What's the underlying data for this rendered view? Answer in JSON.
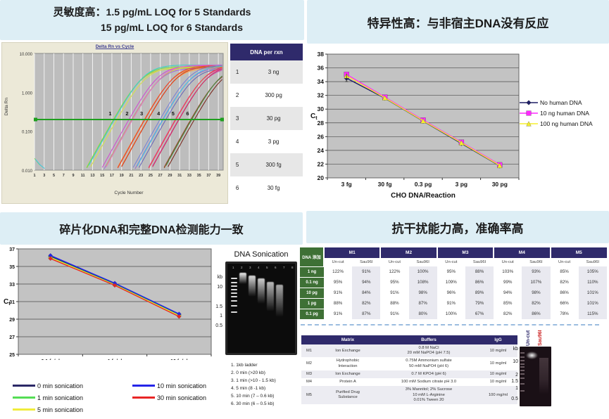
{
  "colors": {
    "navy": "#2f2a6b",
    "green_header": "#3e7035",
    "panel_blue": "#ddeef5",
    "threshold_green": "#1e9e1e"
  },
  "q1": {
    "title_prefix": "灵敏度高：",
    "title_line1": "1.5 pg/mL LOQ for 5 Standards",
    "title_line2": "15 pg/mL LOQ for 6 Standards",
    "dna_table": {
      "header": "DNA per rxn",
      "rows": [
        [
          "1",
          "3 ng"
        ],
        [
          "2",
          "300 pg"
        ],
        [
          "3",
          "30 pg"
        ],
        [
          "4",
          "3 pg"
        ],
        [
          "5",
          "300 fg"
        ],
        [
          "6",
          "30 fg"
        ]
      ]
    }
  },
  "q2": {
    "title": "特异性高：与非宿主DNA没有反应"
  },
  "q3": {
    "title": "碎片化DNA和完整DNA检测能力一致",
    "gel": {
      "title": "DNA Sonication",
      "lane_numbers": [
        "1",
        "2",
        "3",
        "4",
        "5",
        "6",
        "7",
        "8"
      ],
      "kb_labels": [
        "kb",
        "10",
        "1.5",
        "1",
        "0.5"
      ],
      "caption": [
        "1. 1kb ladder",
        "2. 0 min (>20 kb)",
        "3. 1 min (>10 - 1.5 kb)",
        "4. 5 min (8 -1 kb)",
        "5. 10 min (7 – 0.6 kb)",
        "6. 30 min (6 – 0.5 kb)"
      ]
    }
  },
  "q4": {
    "title": "抗干扰能力高，准确率高",
    "spike_table": {
      "corner": "DNA 添加",
      "groups": [
        "M1",
        "M2",
        "M3",
        "M4",
        "M5"
      ],
      "subcols": [
        "Un-cut",
        "Sau96I"
      ],
      "rows": [
        {
          "label": "1 ng",
          "values": [
            "122%",
            "91%",
            "122%",
            "100%",
            "95%",
            "88%",
            "103%",
            "93%",
            "85%",
            "105%"
          ]
        },
        {
          "label": "0.1 ng",
          "values": [
            "95%",
            "94%",
            "95%",
            "108%",
            "109%",
            "86%",
            "99%",
            "107%",
            "82%",
            "110%"
          ]
        },
        {
          "label": "10 pg",
          "values": [
            "91%",
            "84%",
            "91%",
            "98%",
            "96%",
            "89%",
            "94%",
            "98%",
            "86%",
            "101%"
          ]
        },
        {
          "label": "1 pg",
          "values": [
            "88%",
            "82%",
            "88%",
            "87%",
            "91%",
            "79%",
            "85%",
            "82%",
            "66%",
            "101%"
          ]
        },
        {
          "label": "0.1 pg",
          "values": [
            "91%",
            "87%",
            "91%",
            "80%",
            "100%",
            "67%",
            "82%",
            "86%",
            "78%",
            "115%"
          ]
        }
      ]
    },
    "matrix_table": {
      "headers": [
        "",
        "Matrix",
        "Buffers",
        "IgG"
      ],
      "rows": [
        {
          "id": "M1",
          "matrix": "Ion Exchange",
          "buffers": "0.8 M NaCl\n20 mM NaPO4 (pH 7.5)",
          "igg": "10 mg/ml"
        },
        {
          "id": "M2",
          "matrix": "Hydrophobic\nInteraction",
          "buffers": "0.75M Ammonium sulfate\n50 mM NaPO4 (pH 6)",
          "igg": "10 mg/ml"
        },
        {
          "id": "M3",
          "matrix": "Ion Exchange",
          "buffers": "0.7 M KPO4 (pH 6)",
          "igg": "10 mg/ml"
        },
        {
          "id": "M4",
          "matrix": "Protein A",
          "buffers": "100 mM Sodium citrate pH 3.0",
          "igg": "10 mg/ml"
        },
        {
          "id": "M5",
          "matrix": "Purified Drug\nSubstance",
          "buffers": "3% Mannitol; 2% Sucrose\n10 mM L-Arginine\n0.01% Tween 20",
          "igg": "100 mg/ml"
        }
      ]
    },
    "gel": {
      "lane_labels": [
        {
          "text": "Un-cut",
          "color": "#2f2a6b"
        },
        {
          "text": "Sau96I",
          "color": "#cc2222"
        }
      ],
      "kb_labels": [
        "kb",
        "10",
        "2",
        "1.5",
        "1",
        "0.5"
      ]
    }
  },
  "chart_data": [
    {
      "id": "amplification",
      "type": "line",
      "title": "Delta Rn vs Cycle",
      "xlabel": "Cycle Number",
      "ylabel": "Delta Rn",
      "y_scale": "log",
      "ylim": [
        0.01,
        10
      ],
      "ytick_labels": [
        "10.000",
        "1.000",
        "0.100",
        "0.010"
      ],
      "xticks": [
        1,
        3,
        5,
        7,
        9,
        11,
        13,
        15,
        17,
        19,
        21,
        23,
        25,
        27,
        29,
        31,
        33,
        35,
        37,
        39
      ],
      "threshold": 0.2,
      "groups": [
        {
          "label": "1",
          "ct": 17.5,
          "dna_per_rxn": "3 ng",
          "colors": [
            "#b9d034",
            "#73d94f",
            "#3fd0c8",
            "#d7e24a"
          ]
        },
        {
          "label": "2",
          "ct": 21.0,
          "dna_per_rxn": "300 pg",
          "colors": [
            "#cf4fd0",
            "#a66ad6",
            "#c9d23a",
            "#e070c8"
          ]
        },
        {
          "label": "3",
          "ct": 24.0,
          "dna_per_rxn": "30 pg",
          "colors": [
            "#f5862b",
            "#e8442e",
            "#f7a54a",
            "#d83b20"
          ]
        },
        {
          "label": "4",
          "ct": 27.5,
          "dna_per_rxn": "3 pg",
          "colors": [
            "#7b82d4",
            "#9a6cc9",
            "#45c4ea",
            "#6a6ab8"
          ]
        },
        {
          "label": "5",
          "ct": 30.5,
          "dna_per_rxn": "300 fg",
          "colors": [
            "#e23a9e",
            "#e84c48",
            "#c958b0",
            "#d03060"
          ]
        },
        {
          "label": "6",
          "ct": 33.5,
          "dna_per_rxn": "30 fg",
          "colors": [
            "#9b3a36",
            "#8a5a28",
            "#4d8a46",
            "#7a2e22"
          ]
        }
      ]
    },
    {
      "id": "specificity",
      "type": "line",
      "categories": [
        "3 fg",
        "30 fg",
        "0.3 pg",
        "3 pg",
        "30 pg"
      ],
      "xlabel": "CHO DNA/Reaction",
      "ylabel": "Ct",
      "ylim": [
        20,
        38
      ],
      "ytick_step": 2,
      "legend_position": "right",
      "series": [
        {
          "name": "No human DNA",
          "color": "#1f1f66",
          "marker": "diamond",
          "values": [
            34.5,
            31.6,
            28.25,
            25.0,
            21.75
          ]
        },
        {
          "name": "10 ng human DNA",
          "color": "#ff29ff",
          "marker": "square",
          "values": [
            35.05,
            31.75,
            28.4,
            25.2,
            21.9
          ]
        },
        {
          "name": "100 ng human DNA",
          "color": "#f5ef2e",
          "marker": "triangle",
          "values": [
            34.85,
            31.65,
            28.3,
            25.1,
            21.8
          ]
        }
      ]
    },
    {
      "id": "sonication_ct",
      "type": "line",
      "categories": [
        "0.1 fg/ul",
        "1 fg/ul",
        "10 fg/ul"
      ],
      "xlabel": "",
      "ylabel": "Ct",
      "ylim": [
        25,
        37
      ],
      "ytick_step": 2,
      "legend_position": "bottom",
      "series": [
        {
          "name": "0 min sonication",
          "color": "#2b2866",
          "marker": "diamond",
          "values": [
            36.15,
            33.0,
            29.5
          ]
        },
        {
          "name": "1 min sonication",
          "color": "#55dd55",
          "marker": "diamond",
          "values": [
            36.05,
            32.95,
            29.45
          ]
        },
        {
          "name": "5 min sonication",
          "color": "#f0ec3c",
          "marker": "diamond",
          "values": [
            36.0,
            32.9,
            29.4
          ]
        },
        {
          "name": "10 min sonication",
          "color": "#2525e8",
          "marker": "diamond",
          "values": [
            36.25,
            33.1,
            29.6
          ]
        },
        {
          "name": "30 min sonication",
          "color": "#e82525",
          "marker": "diamond",
          "values": [
            35.9,
            32.85,
            29.3
          ]
        }
      ]
    }
  ]
}
